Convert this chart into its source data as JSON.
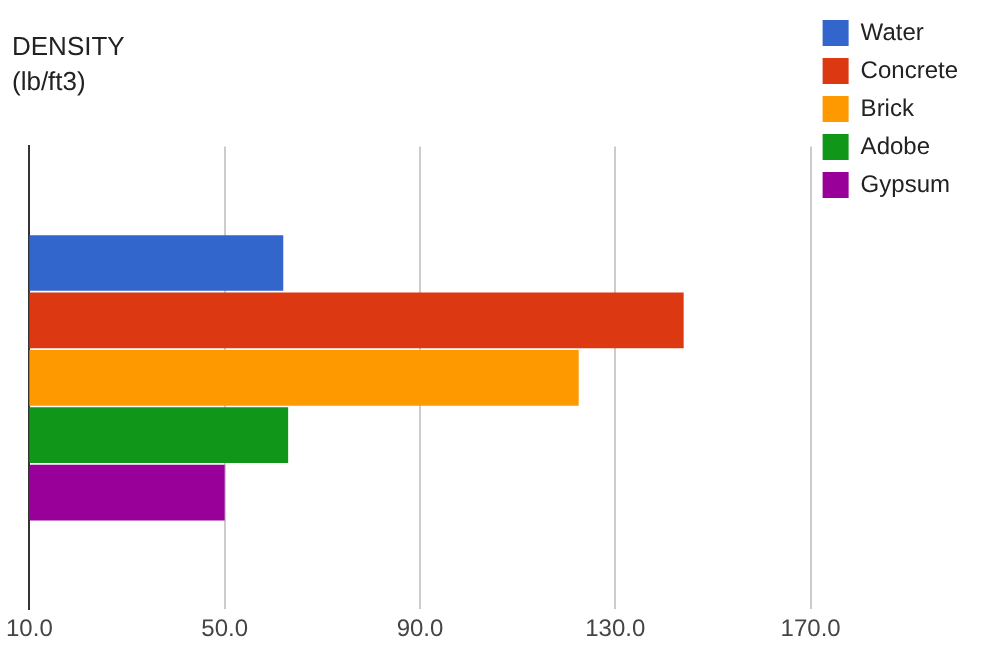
{
  "chart_data": {
    "type": "bar",
    "orientation": "horizontal",
    "title": "DENSITY",
    "subtitle": "(lb/ft3)",
    "categories": [
      null
    ],
    "series": [
      {
        "name": "Water",
        "color": "#3366cc",
        "values": [
          62
        ]
      },
      {
        "name": "Concrete",
        "color": "#dc3912",
        "values": [
          144
        ]
      },
      {
        "name": "Brick",
        "color": "#ff9900",
        "values": [
          122.5
        ]
      },
      {
        "name": "Adobe",
        "color": "#109618",
        "values": [
          63
        ]
      },
      {
        "name": "Gypsum",
        "color": "#990099",
        "values": [
          50
        ]
      }
    ],
    "xlim": [
      10,
      170
    ],
    "xticks": [
      {
        "value": 10,
        "label": "10.0"
      },
      {
        "value": 50,
        "label": "50.0"
      },
      {
        "value": 90,
        "label": "90.0"
      },
      {
        "value": 130,
        "label": "130.0"
      },
      {
        "value": 170,
        "label": "170.0"
      }
    ],
    "grid": "x",
    "legend": "top right"
  }
}
